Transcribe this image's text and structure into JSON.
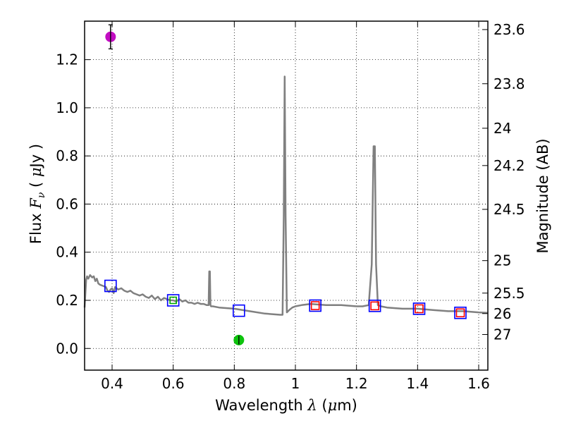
{
  "chart_data": {
    "type": "line",
    "title": "",
    "xlabel": {
      "prefix": "Wavelength  ",
      "symbol": "λ",
      "open": " (",
      "unit_symbol": "μ",
      "unit": "m)"
    },
    "ylabel": {
      "prefix": "Flux  ",
      "symbol": "F",
      "subscript": "ν",
      "open": "  ( ",
      "unit_symbol": "μ",
      "unit": "Jy )"
    },
    "y2label": "Magnitude (AB)",
    "xlim": [
      0.31,
      1.63
    ],
    "ylim": [
      -0.09,
      1.36
    ],
    "grid": true,
    "x_ticks": [
      0.4,
      0.6,
      0.8,
      1.0,
      1.2,
      1.4,
      1.6
    ],
    "x_tick_labels": [
      "0.4",
      "0.6",
      "0.8",
      "1",
      "1.2",
      "1.4",
      "1.6"
    ],
    "y_ticks": [
      0.0,
      0.2,
      0.4,
      0.6,
      0.8,
      1.0,
      1.2
    ],
    "y_tick_labels": [
      "0.0",
      "0.2",
      "0.4",
      "0.6",
      "0.8",
      "1.0",
      "1.2"
    ],
    "y2_ticks": [
      {
        "label": "23.6",
        "flux": 1.325
      },
      {
        "label": "23.8",
        "flux": 1.1
      },
      {
        "label": "24",
        "flux": 0.915
      },
      {
        "label": "24.2",
        "flux": 0.76
      },
      {
        "label": "24.5",
        "flux": 0.578
      },
      {
        "label": "25",
        "flux": 0.365
      },
      {
        "label": "25.5",
        "flux": 0.23
      },
      {
        "label": "26",
        "flux": 0.145
      },
      {
        "label": "27",
        "flux": 0.058
      }
    ],
    "series": [
      {
        "name": "model spectrum",
        "color": "#808080",
        "x": [
          0.31,
          0.315,
          0.318,
          0.322,
          0.328,
          0.335,
          0.34,
          0.345,
          0.35,
          0.355,
          0.36,
          0.37,
          0.38,
          0.385,
          0.39,
          0.395,
          0.4,
          0.405,
          0.41,
          0.42,
          0.43,
          0.44,
          0.45,
          0.46,
          0.47,
          0.48,
          0.49,
          0.5,
          0.51,
          0.52,
          0.53,
          0.54,
          0.55,
          0.56,
          0.57,
          0.58,
          0.59,
          0.6,
          0.61,
          0.62,
          0.63,
          0.64,
          0.65,
          0.66,
          0.67,
          0.68,
          0.69,
          0.7,
          0.71,
          0.716,
          0.718,
          0.72,
          0.722,
          0.724,
          0.73,
          0.75,
          0.8,
          0.85,
          0.9,
          0.95,
          0.958,
          0.962,
          0.965,
          0.968,
          0.972,
          0.98,
          0.99,
          1.0,
          1.02,
          1.05,
          1.1,
          1.15,
          1.2,
          1.22,
          1.24,
          1.25,
          1.256,
          1.26,
          1.264,
          1.27,
          1.28,
          1.3,
          1.35,
          1.4,
          1.45,
          1.5,
          1.55,
          1.6,
          1.63
        ],
        "y": [
          0.17,
          0.285,
          0.3,
          0.29,
          0.305,
          0.295,
          0.3,
          0.28,
          0.29,
          0.27,
          0.265,
          0.26,
          0.255,
          0.24,
          0.235,
          0.245,
          0.25,
          0.23,
          0.255,
          0.245,
          0.25,
          0.24,
          0.235,
          0.24,
          0.23,
          0.225,
          0.22,
          0.225,
          0.215,
          0.21,
          0.22,
          0.205,
          0.215,
          0.2,
          0.21,
          0.205,
          0.2,
          0.2,
          0.195,
          0.205,
          0.195,
          0.2,
          0.19,
          0.19,
          0.185,
          0.19,
          0.185,
          0.185,
          0.18,
          0.18,
          0.32,
          0.32,
          0.18,
          0.175,
          0.175,
          0.17,
          0.165,
          0.155,
          0.145,
          0.14,
          0.14,
          0.55,
          1.13,
          0.55,
          0.15,
          0.16,
          0.17,
          0.175,
          0.18,
          0.185,
          0.18,
          0.18,
          0.175,
          0.175,
          0.18,
          0.35,
          0.84,
          0.84,
          0.35,
          0.18,
          0.175,
          0.17,
          0.165,
          0.165,
          0.16,
          0.155,
          0.155,
          0.15,
          0.148
        ]
      }
    ],
    "markers": [
      {
        "name": "blue-square",
        "color": "#0000ff",
        "shape": "square",
        "x": [
          0.395,
          0.6,
          0.815,
          1.065,
          1.26,
          1.405,
          1.54
        ],
        "y": [
          0.26,
          0.2,
          0.157,
          0.178,
          0.177,
          0.165,
          0.148
        ]
      },
      {
        "name": "red-square",
        "color": "#ff0000",
        "shape": "square",
        "x": [
          1.065,
          1.26,
          1.405,
          1.54
        ],
        "y": [
          0.178,
          0.177,
          0.165,
          0.148
        ]
      },
      {
        "name": "green-square",
        "color": "#00aa00",
        "shape": "square",
        "x": [
          0.6
        ],
        "y": [
          0.2
        ]
      },
      {
        "name": "purple-point",
        "color": "#bf00bf",
        "shape": "circle",
        "x": [
          0.395
        ],
        "y": [
          1.295
        ],
        "yerr": [
          0.05
        ]
      },
      {
        "name": "green-point",
        "color": "#00c000",
        "shape": "circle",
        "x": [
          0.815
        ],
        "y": [
          0.035
        ],
        "yerr": [
          0.018
        ]
      }
    ]
  }
}
